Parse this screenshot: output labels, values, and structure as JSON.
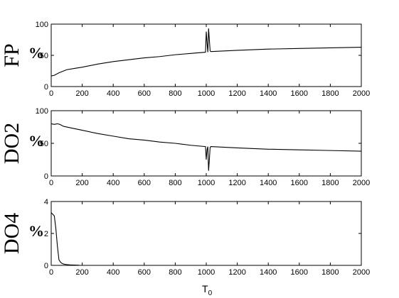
{
  "chart_data": [
    {
      "type": "line",
      "ylabel": "FP",
      "yunit": "%",
      "xlim": [
        0,
        2000
      ],
      "ylim": [
        0,
        100
      ],
      "xticks": [
        0,
        200,
        400,
        600,
        800,
        1000,
        1200,
        1400,
        1600,
        1800,
        2000
      ],
      "yticks": [
        0,
        50,
        100
      ],
      "series": [
        {
          "x": [
            0,
            20,
            50,
            100,
            150,
            200,
            300,
            400,
            500,
            600,
            700,
            800,
            900,
            995,
            1000,
            1005,
            1010,
            1015,
            1020,
            1025,
            1030,
            1200,
            1400,
            1600,
            1800,
            2000
          ],
          "y": [
            17,
            18,
            22,
            27,
            29,
            31,
            36,
            40,
            43,
            46,
            48,
            51,
            53,
            55,
            88,
            70,
            55,
            93,
            75,
            57,
            56,
            58,
            60,
            61,
            62,
            63
          ]
        }
      ]
    },
    {
      "type": "line",
      "ylabel": "DO2",
      "yunit": "%",
      "xlim": [
        0,
        2000
      ],
      "ylim": [
        0,
        100
      ],
      "xticks": [
        0,
        200,
        400,
        600,
        800,
        1000,
        1200,
        1400,
        1600,
        1800,
        2000
      ],
      "yticks": [
        0,
        50,
        100
      ],
      "series": [
        {
          "x": [
            0,
            20,
            40,
            55,
            80,
            120,
            200,
            300,
            400,
            500,
            600,
            700,
            800,
            900,
            995,
            1000,
            1005,
            1010,
            1015,
            1020,
            1025,
            1030,
            1200,
            1400,
            1600,
            1800,
            2000
          ],
          "y": [
            80,
            79,
            80,
            79,
            76,
            74,
            70,
            65,
            61,
            57,
            55,
            52,
            50,
            47,
            45,
            25,
            40,
            45,
            8,
            25,
            44,
            45,
            43,
            41,
            40,
            39,
            38
          ]
        }
      ]
    },
    {
      "type": "line",
      "ylabel": "DO4",
      "yunit": "%",
      "xlabel": "T",
      "xlabel_sub": "0",
      "xlim": [
        0,
        2000
      ],
      "ylim": [
        0,
        4
      ],
      "xticks": [
        0,
        200,
        400,
        600,
        800,
        1000,
        1200,
        1400,
        1600,
        1800,
        2000
      ],
      "yticks": [
        0,
        2,
        4
      ],
      "series": [
        {
          "x": [
            0,
            10,
            20,
            30,
            40,
            50,
            60,
            70,
            80,
            100,
            120,
            150,
            180
          ],
          "y": [
            3.3,
            3.2,
            3.1,
            2.3,
            1.2,
            0.35,
            0.2,
            0.12,
            0.08,
            0.05,
            0.03,
            0.02,
            0.01
          ]
        }
      ]
    }
  ]
}
